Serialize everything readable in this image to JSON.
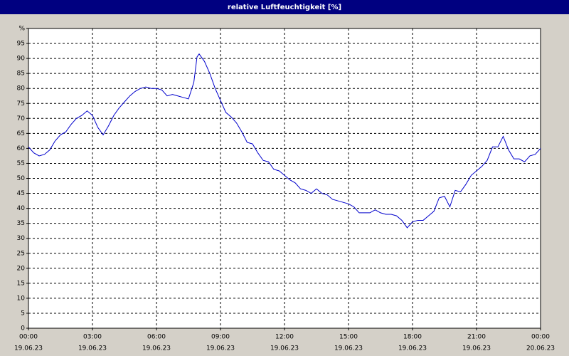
{
  "chart_data": {
    "type": "line",
    "title": "relative Luftfeuchtigkeit [%]",
    "x": [
      0,
      0.25,
      0.5,
      0.75,
      1,
      1.25,
      1.5,
      1.75,
      2,
      2.25,
      2.5,
      2.75,
      3,
      3.25,
      3.5,
      3.75,
      4,
      4.25,
      4.5,
      4.75,
      5,
      5.25,
      5.5,
      5.75,
      6,
      6.25,
      6.5,
      6.75,
      7,
      7.25,
      7.5,
      7.75,
      7.9,
      8,
      8.25,
      8.5,
      8.75,
      9,
      9.25,
      9.5,
      9.75,
      10,
      10.25,
      10.5,
      10.75,
      11,
      11.25,
      11.5,
      11.75,
      12,
      12.25,
      12.5,
      12.75,
      13,
      13.25,
      13.5,
      13.75,
      14,
      14.25,
      14.5,
      14.75,
      15,
      15.25,
      15.5,
      15.75,
      16,
      16.25,
      16.5,
      16.75,
      17,
      17.25,
      17.5,
      17.75,
      18,
      18.25,
      18.5,
      18.75,
      19,
      19.25,
      19.5,
      19.75,
      20,
      20.25,
      20.5,
      20.75,
      21,
      21.25,
      21.5,
      21.75,
      22,
      22.25,
      22.5,
      22.75,
      23,
      23.25,
      23.5,
      23.75,
      24
    ],
    "series": [
      {
        "name": "relative Luftfeuchtigkeit",
        "color": "#0000cc",
        "values": [
          60.5,
          58.5,
          57.5,
          58,
          59.5,
          62.5,
          64.5,
          65.5,
          68,
          70,
          71,
          72.5,
          71,
          67,
          64.5,
          67.5,
          71,
          73.5,
          75.5,
          77.5,
          79,
          80,
          80.5,
          80,
          80,
          79.5,
          77.5,
          78,
          77.5,
          77,
          76.5,
          82,
          90.5,
          91.5,
          89,
          85,
          80,
          76,
          72,
          70.5,
          68.5,
          65.5,
          62,
          61.5,
          58.5,
          56,
          55.5,
          53,
          52.5,
          51,
          49.5,
          48.5,
          46.5,
          46,
          45,
          46.5,
          45,
          44.5,
          43,
          42.5,
          42,
          41.5,
          40.5,
          38.5,
          38.5,
          38.5,
          39.5,
          38.5,
          38,
          38,
          37.5,
          36,
          33.5,
          35.5,
          36,
          36,
          37.5,
          39,
          43.5,
          44,
          40.5,
          46,
          45.5,
          48,
          51,
          52.5,
          54,
          56,
          60.5,
          60.5,
          64,
          59.5,
          56.5,
          56.5,
          55.5,
          57.5,
          58,
          60
        ]
      }
    ],
    "xlim": [
      0,
      24
    ],
    "xticks": [
      {
        "value": 0,
        "label": [
          "00:00",
          "19.06.23"
        ]
      },
      {
        "value": 3,
        "label": [
          "03:00",
          "19.06.23"
        ]
      },
      {
        "value": 6,
        "label": [
          "06:00",
          "19.06.23"
        ]
      },
      {
        "value": 9,
        "label": [
          "09:00",
          "19.06.23"
        ]
      },
      {
        "value": 12,
        "label": [
          "12:00",
          "19.06.23"
        ]
      },
      {
        "value": 15,
        "label": [
          "15:00",
          "19.06.23"
        ]
      },
      {
        "value": 18,
        "label": [
          "18:00",
          "19.06.23"
        ]
      },
      {
        "value": 21,
        "label": [
          "21:00",
          "19.06.23"
        ]
      },
      {
        "value": 24,
        "label": [
          "00:00",
          "20.06.23"
        ]
      }
    ],
    "ylim": [
      0,
      100
    ],
    "yticks": [
      0,
      5,
      10,
      15,
      20,
      25,
      30,
      35,
      40,
      45,
      50,
      55,
      60,
      65,
      70,
      75,
      80,
      85,
      90,
      95,
      {
        "value": 100,
        "label": "%"
      }
    ],
    "grid": true
  }
}
